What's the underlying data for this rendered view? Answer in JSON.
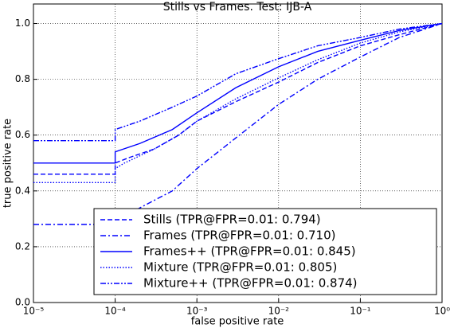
{
  "chart_data": {
    "type": "line",
    "title": "Stills vs Frames. Test: IJB-A",
    "x_label": "false positive rate",
    "y_label": "true positive rate",
    "x_scale": "log",
    "grid": true,
    "legend": "lower right",
    "xlim": [
      1e-05,
      1
    ],
    "ylim": [
      0,
      1.07
    ],
    "xticks": [
      {
        "value": 1e-05,
        "label": "10⁻⁵"
      },
      {
        "value": 0.0001,
        "label": "10⁻⁴"
      },
      {
        "value": 0.001,
        "label": "10⁻³"
      },
      {
        "value": 0.01,
        "label": "10⁻²"
      },
      {
        "value": 0.1,
        "label": "10⁻¹"
      },
      {
        "value": 1,
        "label": "10⁰"
      }
    ],
    "yticks": [
      {
        "value": 0,
        "label": "0.0"
      },
      0.2,
      0.4,
      0.6,
      0.8,
      {
        "value": 1,
        "label": "1.0"
      }
    ],
    "series": [
      {
        "name": "Stills (TPR@FPR=0.01: 0.794)",
        "color": "#0000ff",
        "linestyle": "dashed",
        "x": [
          1e-05,
          0.0001,
          0.0001,
          0.00015,
          0.0003,
          0.0006,
          0.001,
          0.003,
          0.01,
          0.03,
          0.1,
          0.3,
          1
        ],
        "values": [
          0.46,
          0.46,
          0.5,
          0.52,
          0.55,
          0.6,
          0.65,
          0.72,
          0.79,
          0.86,
          0.92,
          0.96,
          1
        ]
      },
      {
        "name": "Frames (TPR@FPR=0.01: 0.710)",
        "color": "#0000ff",
        "linestyle": "dashdot",
        "x": [
          1e-05,
          0.0001,
          0.00015,
          0.0005,
          0.001,
          0.003,
          0.01,
          0.03,
          0.1,
          0.3,
          1
        ],
        "values": [
          0.28,
          0.28,
          0.32,
          0.4,
          0.48,
          0.59,
          0.71,
          0.8,
          0.88,
          0.95,
          1
        ]
      },
      {
        "name": "Frames++ (TPR@FPR=0.01: 0.845)",
        "color": "#0000ff",
        "linestyle": "solid",
        "x": [
          1e-05,
          0.0001,
          0.0001,
          0.0002,
          0.0005,
          0.001,
          0.003,
          0.01,
          0.03,
          0.1,
          0.3,
          1
        ],
        "values": [
          0.5,
          0.5,
          0.54,
          0.57,
          0.62,
          0.68,
          0.77,
          0.845,
          0.9,
          0.94,
          0.975,
          1
        ]
      },
      {
        "name": "Mixture (TPR@FPR=0.01: 0.805)",
        "color": "#0000ff",
        "linestyle": "dotted",
        "x": [
          1e-05,
          0.0001,
          0.0001,
          0.00013,
          0.0003,
          0.0006,
          0.001,
          0.003,
          0.01,
          0.03,
          0.1,
          0.3,
          1
        ],
        "values": [
          0.43,
          0.43,
          0.48,
          0.5,
          0.55,
          0.6,
          0.65,
          0.73,
          0.805,
          0.87,
          0.93,
          0.97,
          1
        ]
      },
      {
        "name": "Mixture++ (TPR@FPR=0.01: 0.874)",
        "color": "#0000ff",
        "linestyle": "dashdotdot",
        "x": [
          1e-05,
          0.0001,
          0.0001,
          0.0002,
          0.0005,
          0.001,
          0.003,
          0.01,
          0.03,
          0.1,
          0.3,
          1
        ],
        "values": [
          0.58,
          0.58,
          0.62,
          0.65,
          0.7,
          0.74,
          0.82,
          0.874,
          0.92,
          0.95,
          0.98,
          1
        ]
      }
    ]
  }
}
